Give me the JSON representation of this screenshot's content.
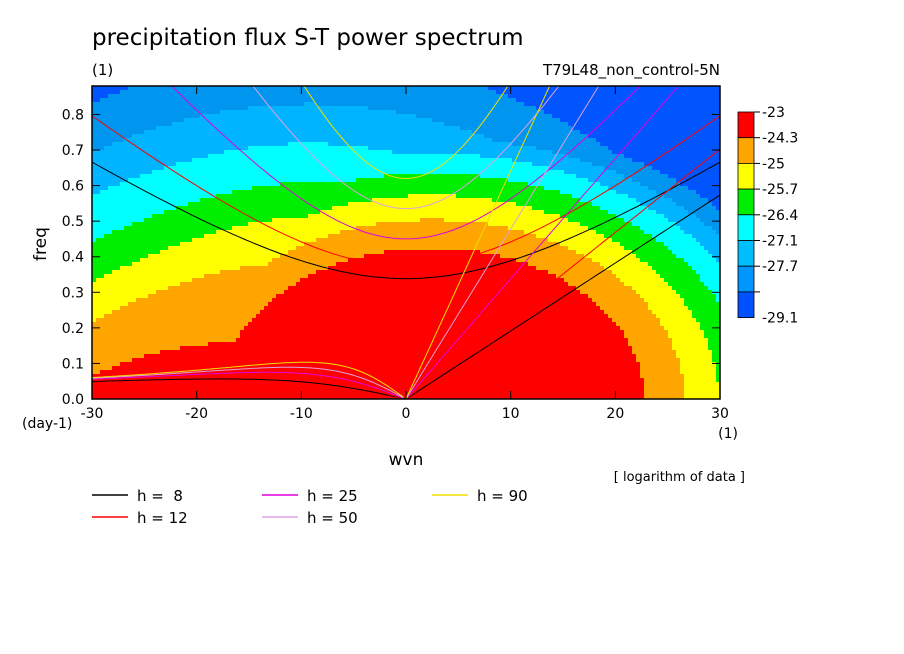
{
  "chart_data": {
    "type": "heatmap",
    "title": "precipitation flux S-T power spectrum",
    "subtitle_left": "(1)",
    "subtitle_right": "T79L48_non_control-5N",
    "xlabel": "wvn",
    "ylabel": "freq",
    "x_unit": "(1)",
    "y_unit": "(day-1)",
    "xlim": [
      -30,
      30
    ],
    "ylim": [
      0,
      0.88
    ],
    "x_ticks": [
      -30,
      -20,
      -10,
      0,
      10,
      20,
      30
    ],
    "y_ticks": [
      0,
      0.1,
      0.2,
      0.3,
      0.4,
      0.5,
      0.6,
      0.7,
      0.8
    ],
    "note": "[ logarithm of data ]",
    "colorbar": {
      "labels": [
        "-23",
        "-24.3",
        "-25",
        "-25.7",
        "-26.4",
        "-27.1",
        "-27.7",
        "-29.1"
      ],
      "colors": [
        "#ff0000",
        "#ffa500",
        "#ffff00",
        "#00ee00",
        "#00ffff",
        "#00bfff",
        "#0096ff",
        "#0050ff"
      ]
    },
    "contour_fill_colors": [
      "#ff0000",
      "#ffa500",
      "#ffff00",
      "#00ee00",
      "#00ffff",
      "#00b4ff",
      "#0096f0",
      "#0055ff"
    ],
    "dispersion_curves": [
      {
        "label": "h =  8",
        "h": 8,
        "color": "#000000"
      },
      {
        "label": "h = 12",
        "h": 12,
        "color": "#ff0000"
      },
      {
        "label": "h = 25",
        "h": 25,
        "color": "#e000e0"
      },
      {
        "label": "h = 50",
        "h": 50,
        "color": "#e0a0e0"
      },
      {
        "label": "h = 90",
        "h": 90,
        "color": "#f0e000"
      }
    ]
  }
}
